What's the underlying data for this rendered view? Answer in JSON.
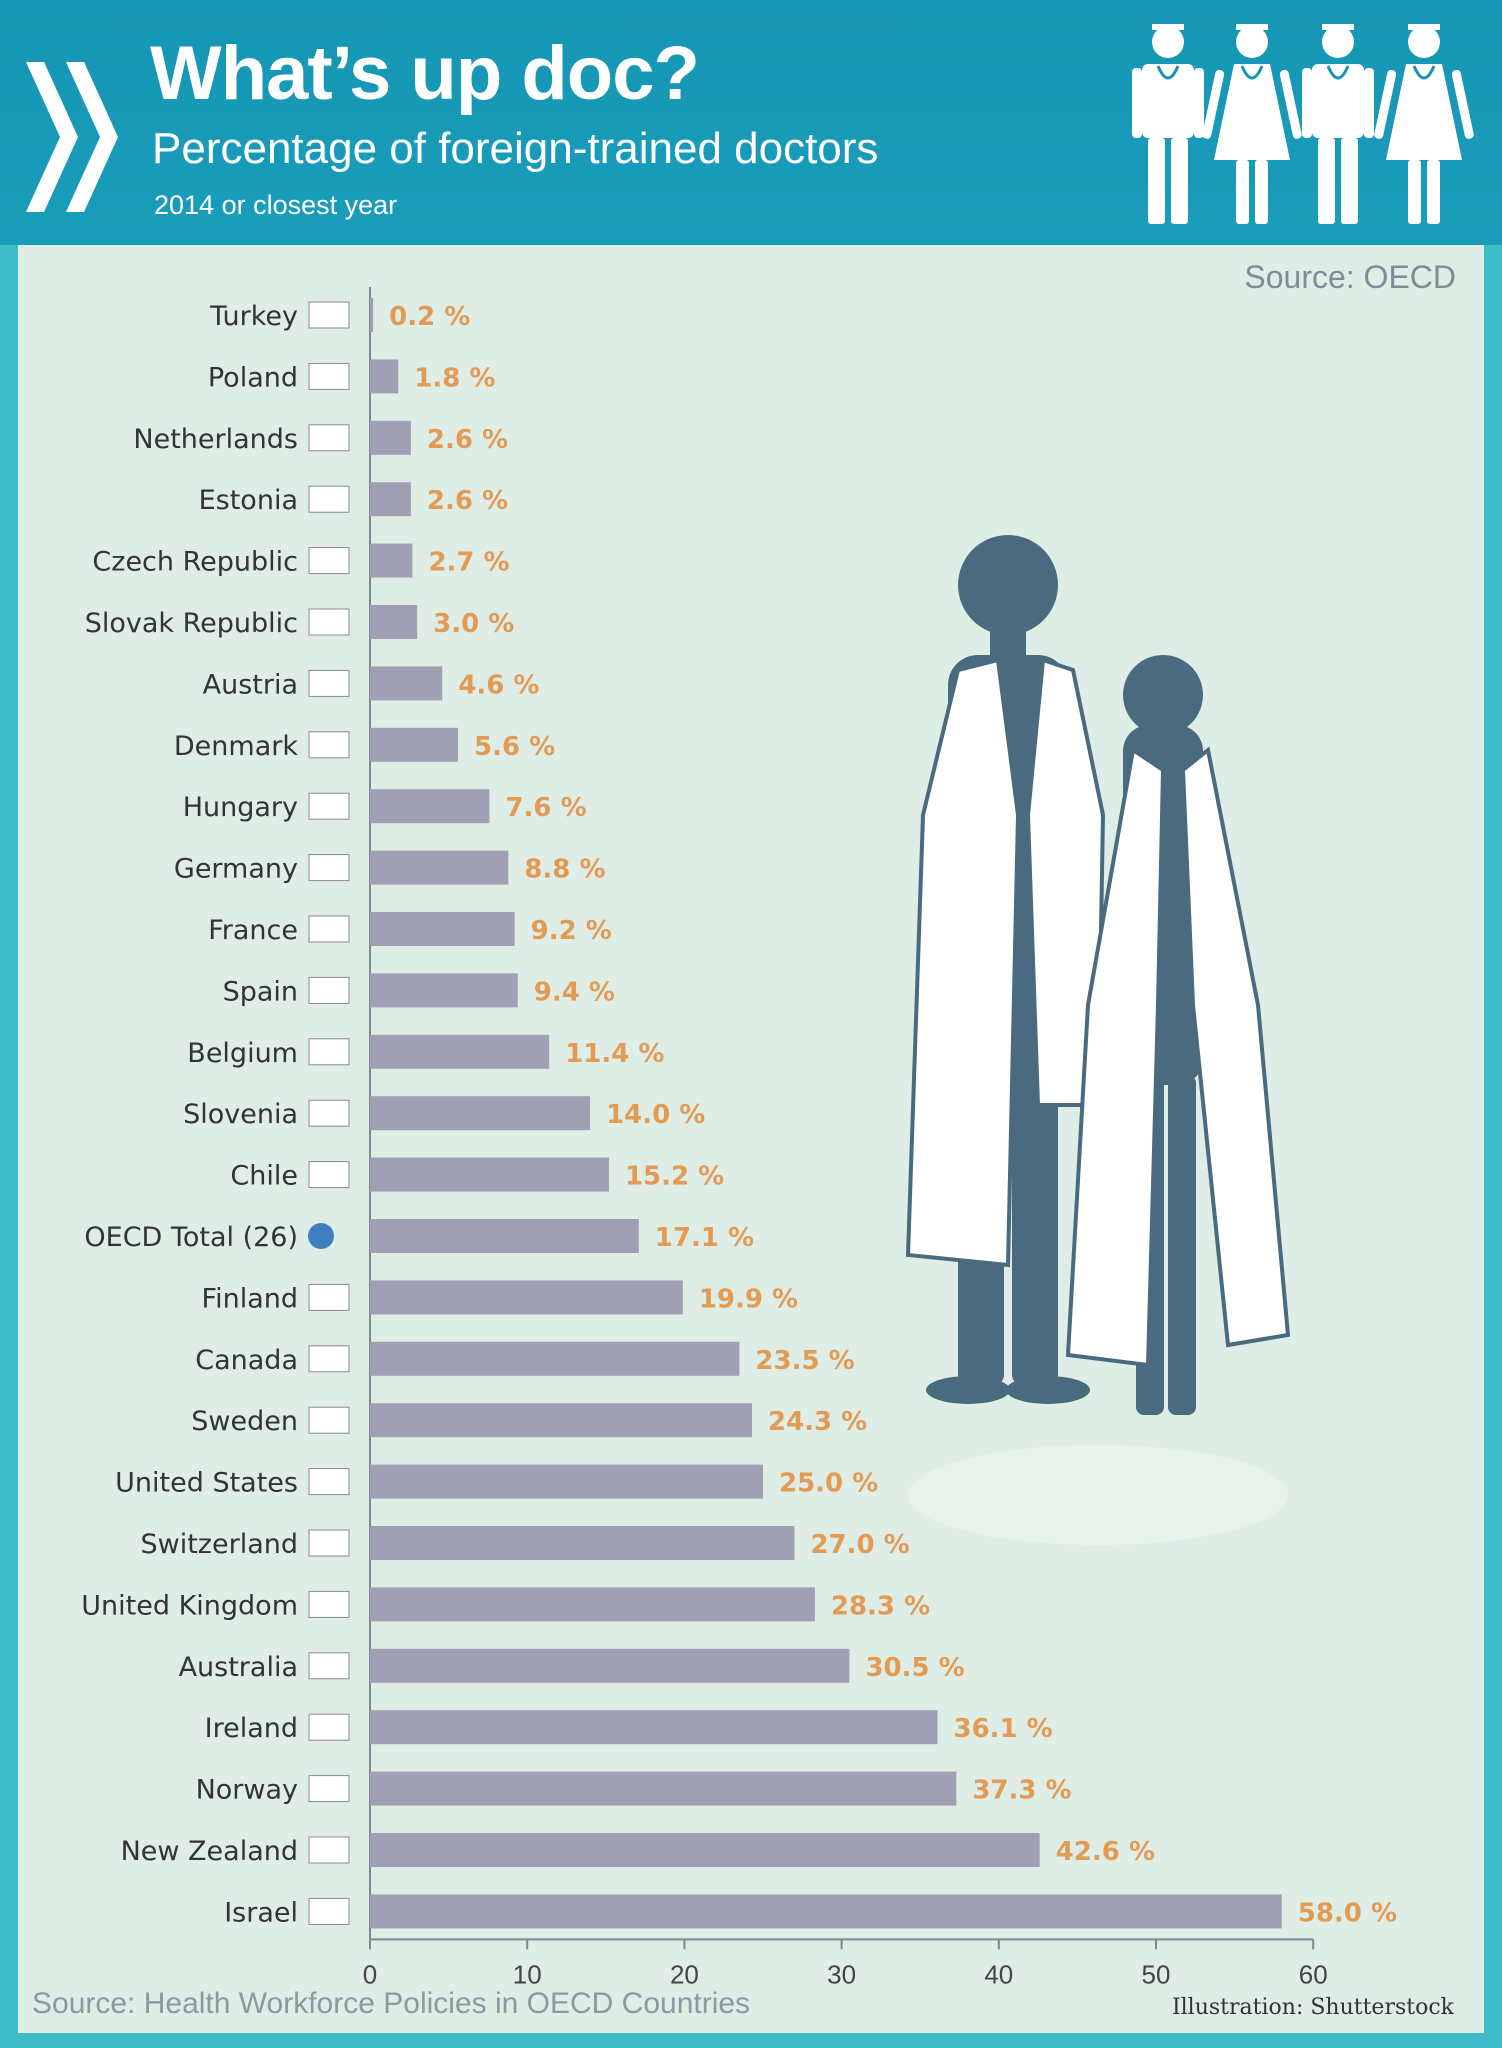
{
  "header": {
    "title": "What’s up doc?",
    "subtitle": "Percentage of foreign-trained doctors",
    "note": "2014 or closest year"
  },
  "panel": {
    "source_top": "Source: OECD",
    "source_bottom": "Source: Health Workforce Policies in OECD Countries",
    "credit": "Illustration: Shutterstock"
  },
  "colors": {
    "bar": "#a19fb3",
    "value_label": "#e39a52",
    "header": "#1596b4",
    "panel": "#deeee6",
    "silhouette": "#4a6a80"
  },
  "icons": [
    "oecd-logo-icon",
    "doctors-icon",
    "doctors-silhouette-illustration",
    "flag-icon",
    "oecd-globe-icon"
  ],
  "chart_data": {
    "type": "bar",
    "orientation": "horizontal",
    "categories": [
      "Turkey",
      "Poland",
      "Netherlands",
      "Estonia",
      "Czech Republic",
      "Slovak Republic",
      "Austria",
      "Denmark",
      "Hungary",
      "Germany",
      "France",
      "Spain",
      "Belgium",
      "Slovenia",
      "Chile",
      "OECD Total (26)",
      "Finland",
      "Canada",
      "Sweden",
      "United States",
      "Switzerland",
      "United Kingdom",
      "Australia",
      "Ireland",
      "Norway",
      "New Zealand",
      "Israel"
    ],
    "values": [
      0.2,
      1.8,
      2.6,
      2.6,
      2.7,
      3.0,
      4.6,
      5.6,
      7.6,
      8.8,
      9.2,
      9.4,
      11.4,
      14.0,
      15.2,
      17.1,
      19.9,
      23.5,
      24.3,
      25.0,
      27.0,
      28.3,
      30.5,
      36.1,
      37.3,
      42.6,
      58.0
    ],
    "value_labels": [
      "0.2",
      "1.8",
      "2.6",
      "2.6",
      "2.7",
      "3.0",
      "4.6",
      "5.6",
      "7.6",
      "8.8",
      "9.2",
      "9.4",
      "11.4",
      "14.0",
      "15.2",
      "17.1",
      "19.9",
      "23.5",
      "24.3",
      "25.0",
      "27.0",
      "28.3",
      "30.5",
      "36.1",
      "37.3",
      "42.6",
      "58.0"
    ],
    "unit": "%",
    "x_ticks": [
      "0",
      "10",
      "20",
      "30",
      "40",
      "50",
      "60"
    ],
    "xlim": [
      0,
      60
    ],
    "grid": false
  }
}
